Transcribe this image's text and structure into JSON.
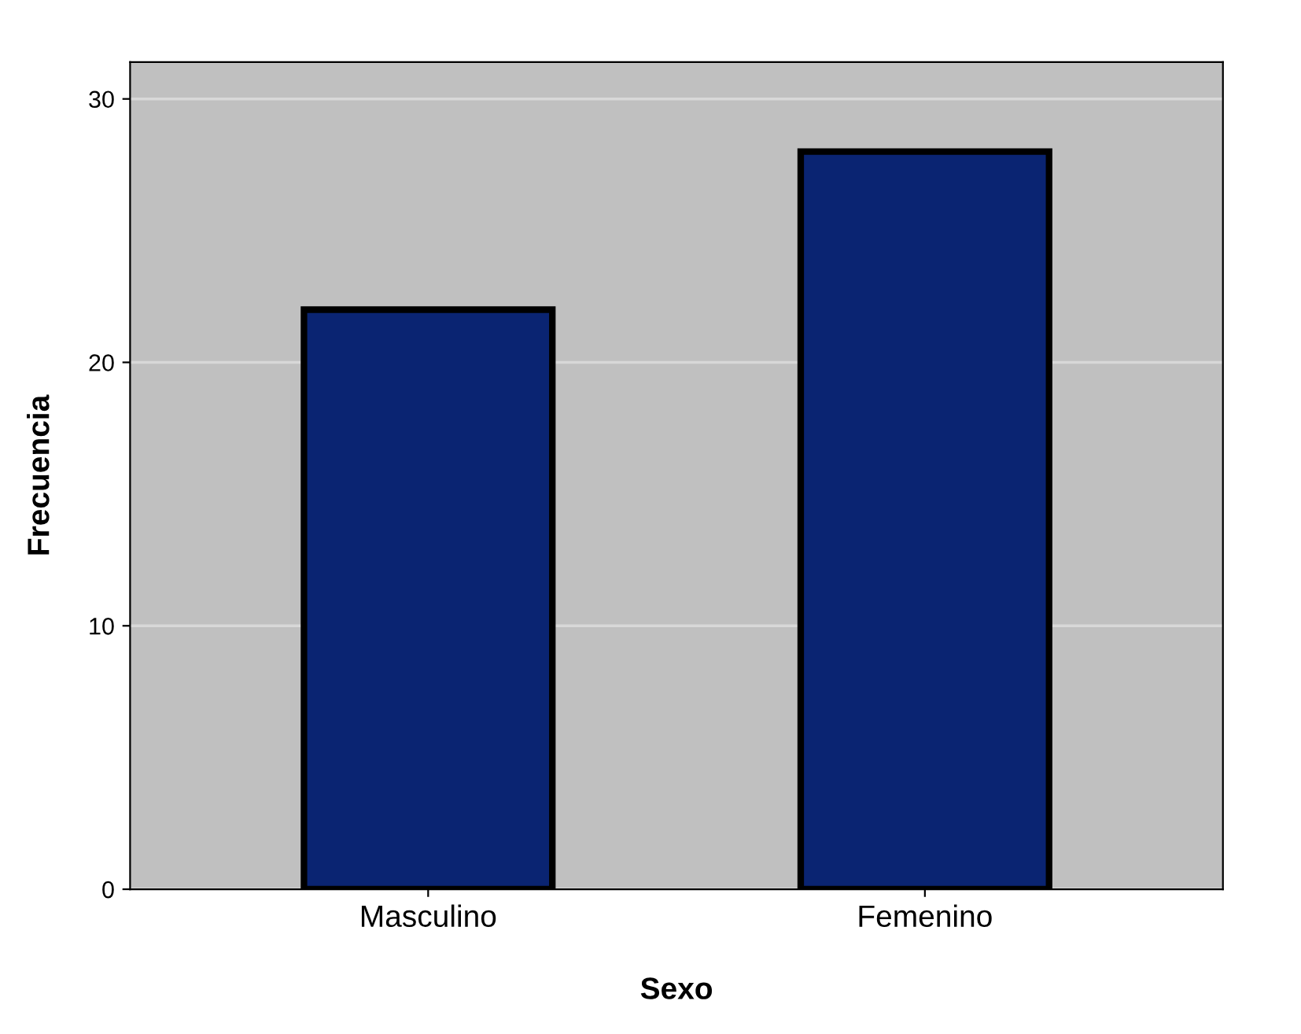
{
  "chart_data": {
    "type": "bar",
    "xlabel": "Sexo",
    "ylabel": "Frecuencia",
    "categories": [
      "Masculino",
      "Femenino"
    ],
    "values": [
      22,
      28
    ],
    "color": "#0a2472",
    "ylim": [
      0,
      31.4
    ],
    "yticks": [
      0,
      10,
      20,
      30
    ],
    "grid": "y"
  }
}
